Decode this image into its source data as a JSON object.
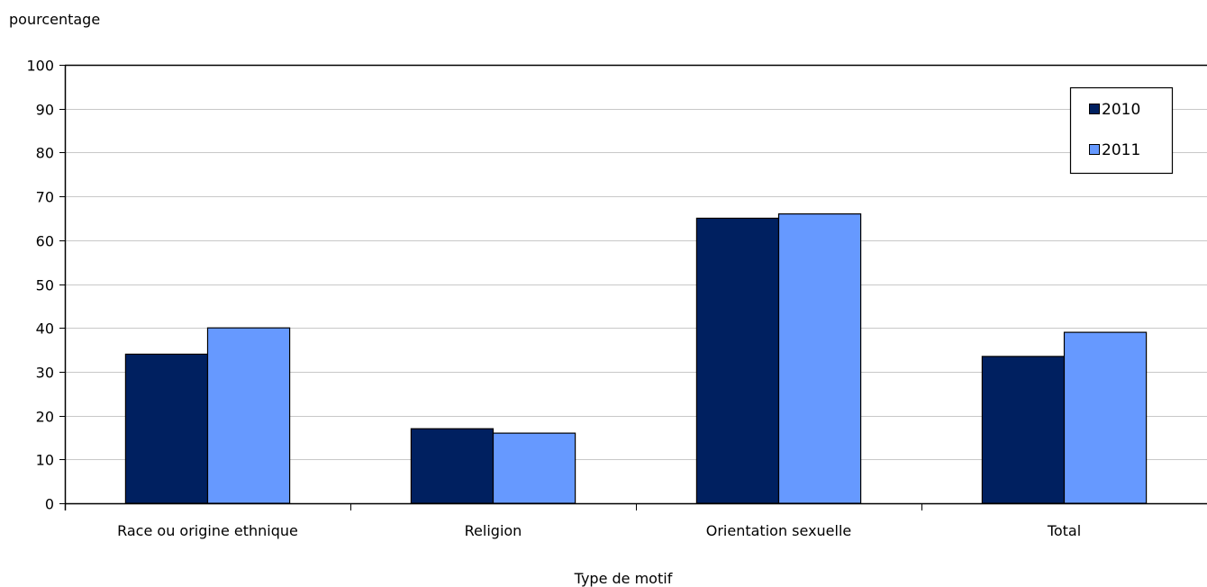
{
  "chart_data": {
    "type": "bar",
    "title": "",
    "ylabel": "pourcentage",
    "xlabel": "Type de motif",
    "categories": [
      "Race ou origine ethnique",
      "Religion",
      "Orientation sexuelle",
      "Total"
    ],
    "series": [
      {
        "name": "2010",
        "values": [
          34,
          17,
          65,
          33.5
        ],
        "color": "#002060"
      },
      {
        "name": "2011",
        "values": [
          40,
          16,
          66,
          39
        ],
        "color": "#6699ff"
      }
    ],
    "ylim": [
      0,
      100
    ],
    "yticks": [
      0,
      10,
      20,
      30,
      40,
      50,
      60,
      70,
      80,
      90,
      100
    ],
    "grid": true,
    "legend_position": "top-right"
  }
}
